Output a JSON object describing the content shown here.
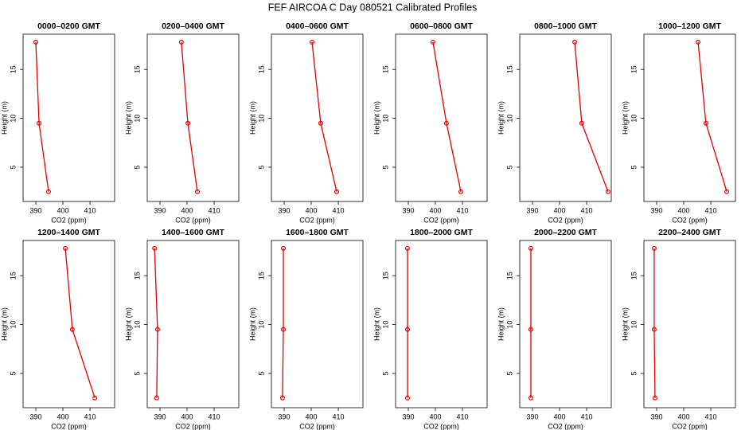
{
  "title": "FEF AIRCOA C  Day 080521  Calibrated Profiles",
  "chart_data": [
    {
      "type": "line",
      "title": "0000–0200 GMT",
      "x_label": "CO2 (ppm)",
      "y_label": "Height (m)",
      "xlim": [
        385.3,
        419.1
      ],
      "ylim": [
        1.5,
        18.6
      ],
      "xticks": [
        390,
        400,
        410
      ],
      "yticks": [
        5,
        10,
        15
      ],
      "color": "#e00000",
      "x": [
        390.0,
        391.2,
        394.7
      ],
      "y": [
        17.8,
        9.5,
        2.5
      ]
    },
    {
      "type": "line",
      "title": "0200–0400 GMT",
      "x_label": "CO2 (ppm)",
      "y_label": "Height (m)",
      "xlim": [
        385.3,
        419.1
      ],
      "ylim": [
        1.5,
        18.6
      ],
      "xticks": [
        390,
        400,
        410
      ],
      "yticks": [
        5,
        10,
        15
      ],
      "color": "#e00000",
      "x": [
        397.9,
        400.3,
        403.8
      ],
      "y": [
        17.8,
        9.5,
        2.5
      ]
    },
    {
      "type": "line",
      "title": "0400–0600 GMT",
      "x_label": "CO2 (ppm)",
      "y_label": "Height (m)",
      "xlim": [
        385.3,
        419.1
      ],
      "ylim": [
        1.5,
        18.6
      ],
      "xticks": [
        390,
        400,
        410
      ],
      "yticks": [
        5,
        10,
        15
      ],
      "color": "#e00000",
      "x": [
        400.3,
        403.5,
        409.4
      ],
      "y": [
        17.8,
        9.5,
        2.5
      ]
    },
    {
      "type": "line",
      "title": "0600–0800 GMT",
      "x_label": "CO2 (ppm)",
      "y_label": "Height (m)",
      "xlim": [
        385.3,
        419.1
      ],
      "ylim": [
        1.5,
        18.6
      ],
      "xticks": [
        390,
        400,
        410
      ],
      "yticks": [
        5,
        10,
        15
      ],
      "color": "#e00000",
      "x": [
        399.1,
        404.1,
        409.4
      ],
      "y": [
        17.8,
        9.5,
        2.5
      ]
    },
    {
      "type": "line",
      "title": "0800–1000 GMT",
      "x_label": "CO2 (ppm)",
      "y_label": "Height (m)",
      "xlim": [
        385.3,
        419.1
      ],
      "ylim": [
        1.5,
        18.6
      ],
      "xticks": [
        390,
        400,
        410
      ],
      "yticks": [
        5,
        10,
        15
      ],
      "color": "#e00000",
      "x": [
        405.6,
        408.2,
        417.9
      ],
      "y": [
        17.8,
        9.5,
        2.5
      ]
    },
    {
      "type": "line",
      "title": "1000–1200 GMT",
      "x_label": "CO2 (ppm)",
      "y_label": "Height (m)",
      "xlim": [
        385.3,
        419.1
      ],
      "ylim": [
        1.5,
        18.6
      ],
      "xticks": [
        390,
        400,
        410
      ],
      "yticks": [
        5,
        10,
        15
      ],
      "color": "#e00000",
      "x": [
        405.3,
        408.2,
        415.9
      ],
      "y": [
        17.8,
        9.5,
        2.5
      ]
    },
    {
      "type": "line",
      "title": "1200–1400 GMT",
      "x_label": "CO2 (ppm)",
      "y_label": "Height (m)",
      "xlim": [
        385.3,
        419.1
      ],
      "ylim": [
        1.5,
        18.6
      ],
      "xticks": [
        390,
        400,
        410
      ],
      "yticks": [
        5,
        10,
        15
      ],
      "color": "#e00000",
      "x": [
        400.9,
        403.5,
        411.8
      ],
      "y": [
        17.8,
        9.5,
        2.5
      ]
    },
    {
      "type": "line",
      "title": "1400–1600 GMT",
      "x_label": "CO2 (ppm)",
      "y_label": "Height (m)",
      "xlim": [
        385.3,
        419.1
      ],
      "ylim": [
        1.5,
        18.6
      ],
      "xticks": [
        390,
        400,
        410
      ],
      "yticks": [
        5,
        10,
        15
      ],
      "color": "#e00000",
      "x": [
        388.0,
        389.1,
        388.8
      ],
      "y": [
        17.8,
        9.5,
        2.5
      ]
    },
    {
      "type": "line",
      "title": "1600–1800 GMT",
      "x_label": "CO2 (ppm)",
      "y_label": "Height (m)",
      "xlim": [
        385.3,
        419.1
      ],
      "ylim": [
        1.5,
        18.6
      ],
      "xticks": [
        390,
        400,
        410
      ],
      "yticks": [
        5,
        10,
        15
      ],
      "color": "#e00000",
      "x": [
        389.7,
        389.7,
        389.4
      ],
      "y": [
        17.8,
        9.5,
        2.5
      ]
    },
    {
      "type": "line",
      "title": "1800–2000 GMT",
      "x_label": "CO2 (ppm)",
      "y_label": "Height (m)",
      "xlim": [
        385.3,
        419.1
      ],
      "ylim": [
        1.5,
        18.6
      ],
      "xticks": [
        390,
        400,
        410
      ],
      "yticks": [
        5,
        10,
        15
      ],
      "color": "#e00000",
      "x": [
        389.7,
        389.7,
        389.7
      ],
      "y": [
        17.8,
        9.5,
        2.5
      ]
    },
    {
      "type": "line",
      "title": "2000–2200 GMT",
      "x_label": "CO2 (ppm)",
      "y_label": "Height (m)",
      "xlim": [
        385.3,
        419.1
      ],
      "ylim": [
        1.5,
        18.6
      ],
      "xticks": [
        390,
        400,
        410
      ],
      "yticks": [
        5,
        10,
        15
      ],
      "color": "#e00000",
      "x": [
        389.4,
        389.4,
        389.4
      ],
      "y": [
        17.8,
        9.5,
        2.5
      ]
    },
    {
      "type": "line",
      "title": "2200–2400 GMT",
      "x_label": "CO2 (ppm)",
      "y_label": "Height (m)",
      "xlim": [
        385.3,
        419.1
      ],
      "ylim": [
        1.5,
        18.6
      ],
      "xticks": [
        390,
        400,
        410
      ],
      "yticks": [
        5,
        10,
        15
      ],
      "color": "#e00000",
      "x": [
        389.1,
        389.1,
        389.4
      ],
      "y": [
        17.8,
        9.5,
        2.5
      ]
    }
  ]
}
